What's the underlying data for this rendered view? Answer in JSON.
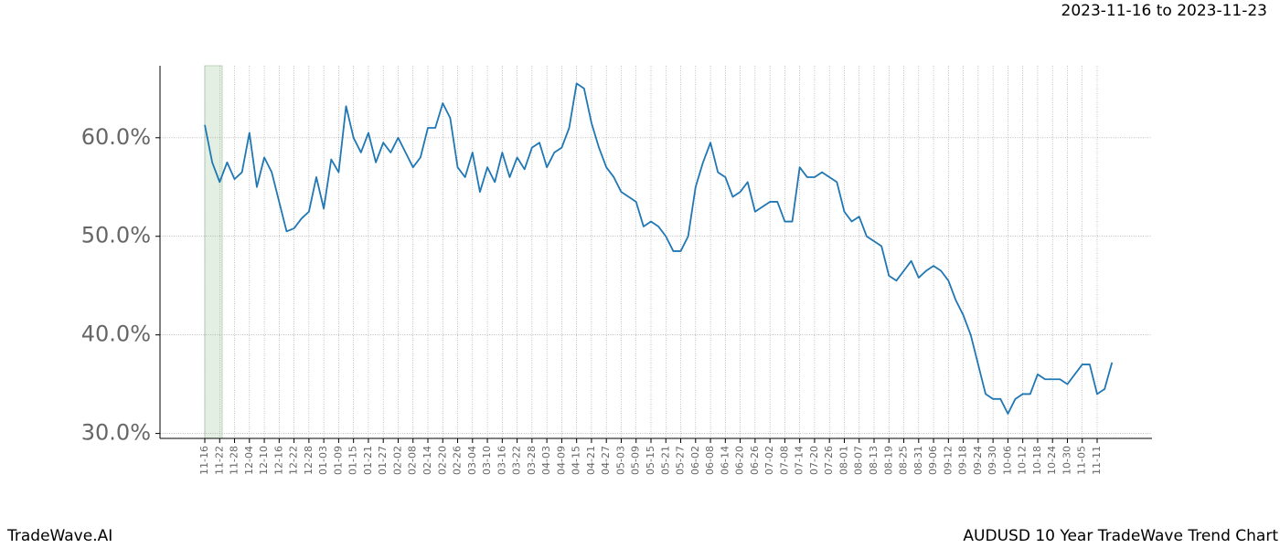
{
  "chart_data": {
    "type": "line",
    "subtitle": "2023-11-16 to 2023-11-23",
    "footer_left": "TradeWave.AI",
    "footer_right": "AUDUSD 10 Year TradeWave Trend Chart",
    "categories": [
      "11-16",
      null,
      "11-22",
      null,
      "11-28",
      null,
      "12-04",
      null,
      "12-10",
      null,
      "12-16",
      null,
      "12-22",
      null,
      "12-28",
      null,
      "01-03",
      null,
      "01-09",
      null,
      "01-15",
      null,
      "01-21",
      null,
      "01-27",
      null,
      "02-02",
      null,
      "02-08",
      null,
      "02-14",
      null,
      "02-20",
      null,
      "02-26",
      null,
      "03-04",
      null,
      "03-10",
      null,
      "03-16",
      null,
      "03-22",
      null,
      "03-28",
      null,
      "04-03",
      null,
      "04-09",
      null,
      "04-15",
      null,
      "04-21",
      null,
      "04-27",
      null,
      "05-03",
      null,
      "05-09",
      null,
      "05-15",
      null,
      "05-21",
      null,
      "05-27",
      null,
      "06-02",
      null,
      "06-08",
      null,
      "06-14",
      null,
      "06-20",
      null,
      "06-26",
      null,
      "07-02",
      null,
      "07-08",
      null,
      "07-14",
      null,
      "07-20",
      null,
      "07-26",
      null,
      "08-01",
      null,
      "08-07",
      null,
      "08-13",
      null,
      "08-19",
      null,
      "08-25",
      null,
      "08-31",
      null,
      "09-06",
      null,
      "09-12",
      null,
      "09-18",
      null,
      "09-24",
      null,
      "09-30",
      null,
      "10-06",
      null,
      "10-12",
      null,
      "10-18",
      null,
      "10-24",
      null,
      "10-30",
      null,
      "11-05",
      null,
      "11-11",
      null,
      null
    ],
    "series": [
      {
        "color": "#1f77b4",
        "values": [
          61.3,
          57.5,
          55.5,
          57.5,
          55.8,
          56.5,
          60.5,
          55.0,
          58.0,
          56.5,
          53.5,
          50.5,
          50.8,
          51.8,
          52.5,
          56.0,
          52.8,
          57.8,
          56.5,
          63.2,
          60.0,
          58.5,
          60.5,
          57.5,
          59.5,
          58.5,
          60.0,
          58.5,
          57.0,
          58.0,
          61.0,
          61.0,
          63.5,
          62.0,
          57.0,
          56.0,
          58.5,
          54.5,
          57.0,
          55.5,
          58.5,
          56.0,
          58.0,
          56.8,
          59.0,
          59.5,
          57.0,
          58.5,
          59.0,
          61.0,
          65.5,
          65.0,
          61.5,
          59.0,
          57.0,
          56.0,
          54.5,
          54.0,
          53.5,
          51.0,
          51.5,
          51.0,
          50.0,
          48.5,
          48.5,
          50.0,
          55.0,
          57.5,
          59.5,
          56.5,
          56.0,
          54.0,
          54.5,
          55.5,
          52.5,
          53.0,
          53.5,
          53.5,
          51.5,
          51.5,
          57.0,
          56.0,
          56.0,
          56.5,
          56.0,
          55.5,
          52.5,
          51.5,
          52.0,
          50.0,
          49.5,
          49.0,
          46.0,
          45.5,
          46.5,
          47.5,
          45.8,
          46.5,
          47.0,
          46.5,
          45.5,
          43.5,
          42.0,
          40.0,
          37.0,
          34.0,
          33.5,
          33.5,
          32.0,
          33.5,
          34.0,
          34.0,
          36.0,
          35.5,
          35.5,
          35.5,
          35.0,
          36.0,
          37.0,
          37.0,
          34.0,
          34.5,
          37.2
        ]
      }
    ],
    "ylim": [
      29.5,
      67.3
    ],
    "yticks": [
      {
        "value": 30,
        "label": "30.0%"
      },
      {
        "value": 40,
        "label": "40.0%"
      },
      {
        "value": 50,
        "label": "50.0%"
      },
      {
        "value": 60,
        "label": "60.0%"
      }
    ],
    "grid": true
  }
}
